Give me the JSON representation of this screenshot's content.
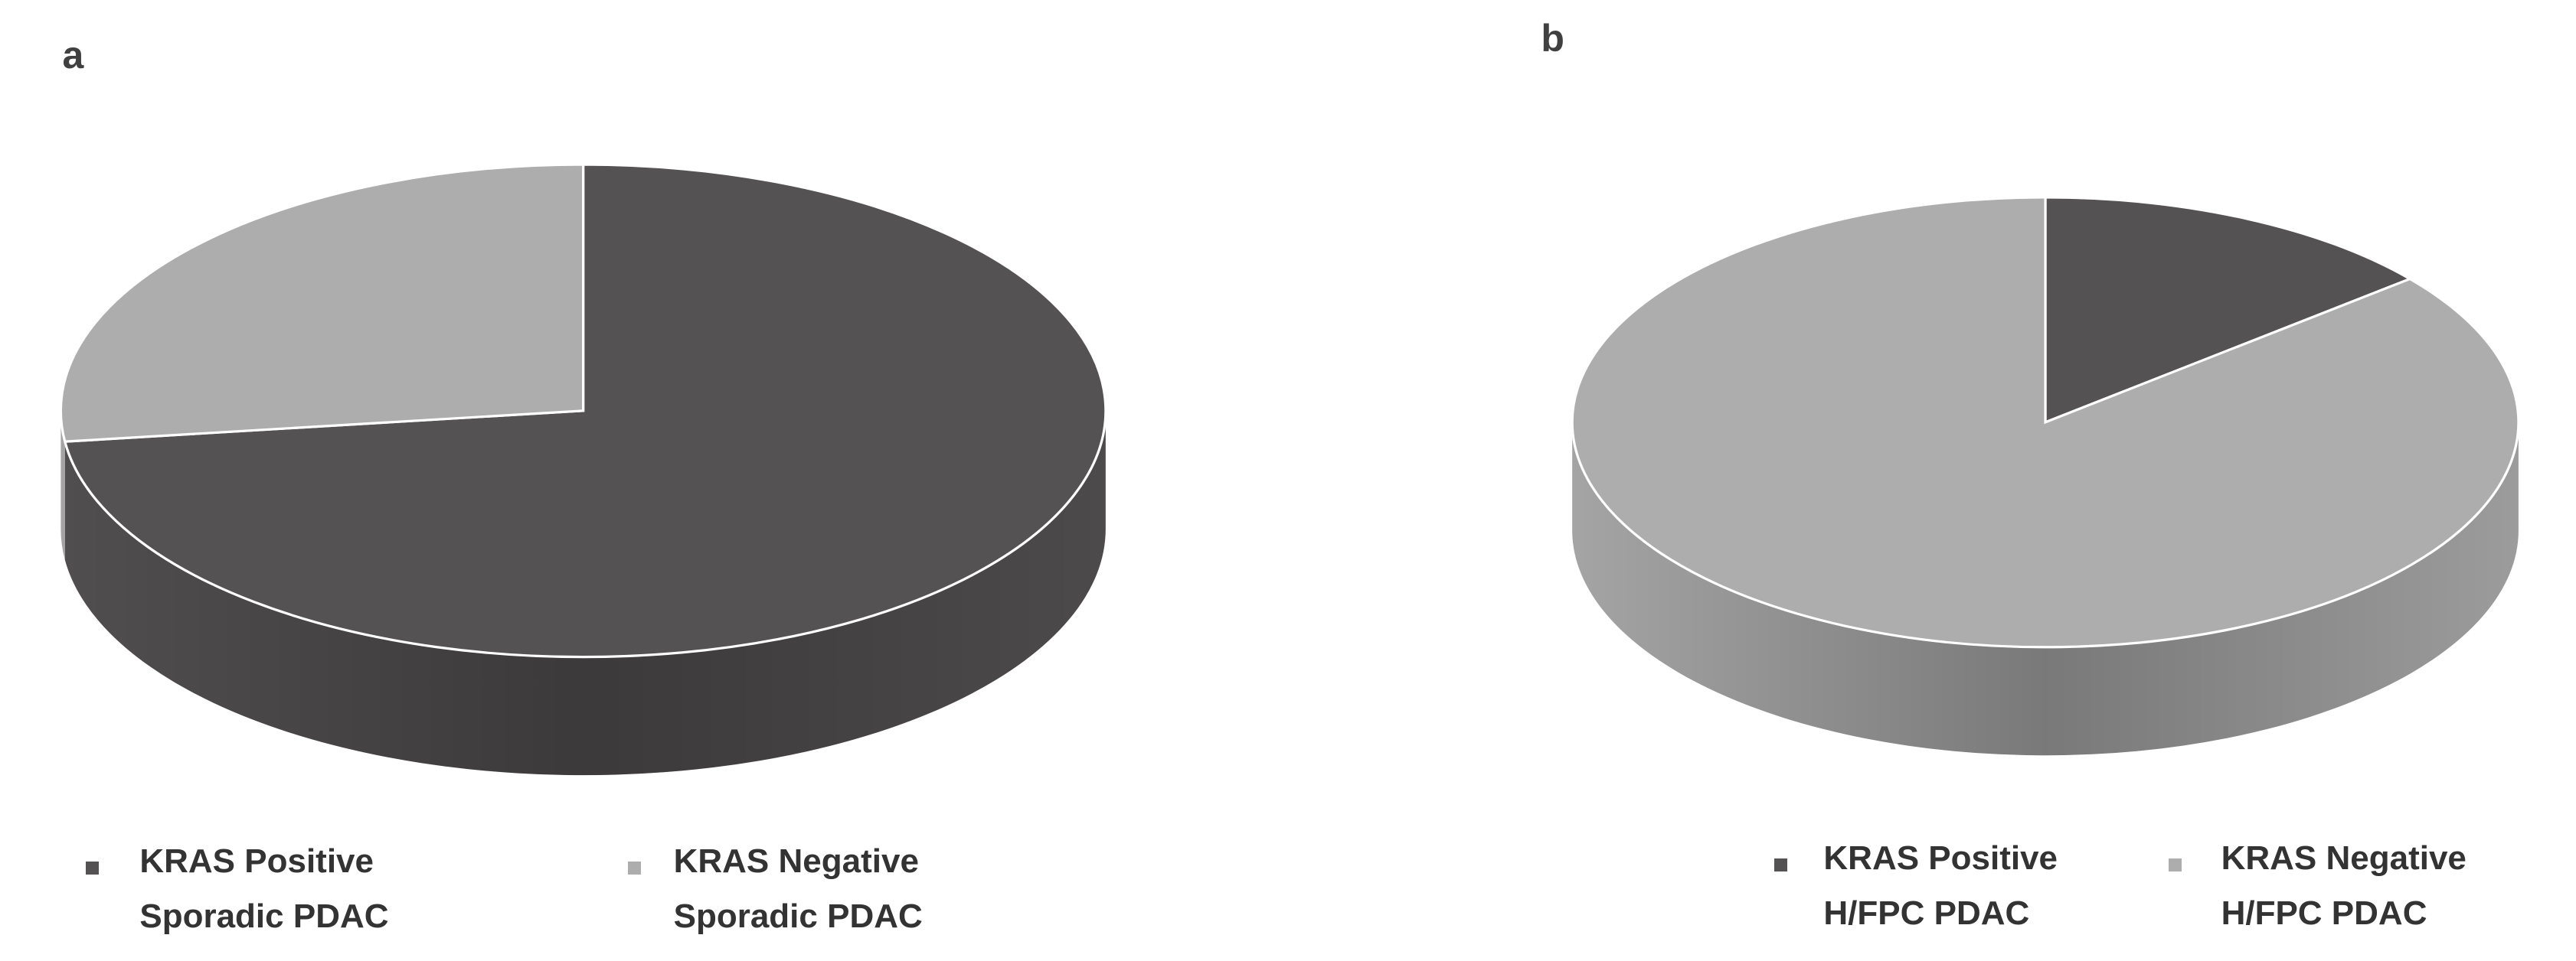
{
  "chart_data": [
    {
      "type": "pie",
      "title": "a",
      "categories": [
        "KRAS Positive Sporadic PDAC",
        "KRAS Negative Sporadic PDAC"
      ],
      "values": [
        73,
        27
      ],
      "colors": [
        "#555253",
        "#adadad"
      ]
    },
    {
      "type": "pie",
      "title": "b",
      "categories": [
        "KRAS Positive H/FPC PDAC",
        "KRAS Negative H/FPC PDAC"
      ],
      "values": [
        14,
        86
      ],
      "colors": [
        "#555253",
        "#adadad"
      ]
    }
  ]
}
